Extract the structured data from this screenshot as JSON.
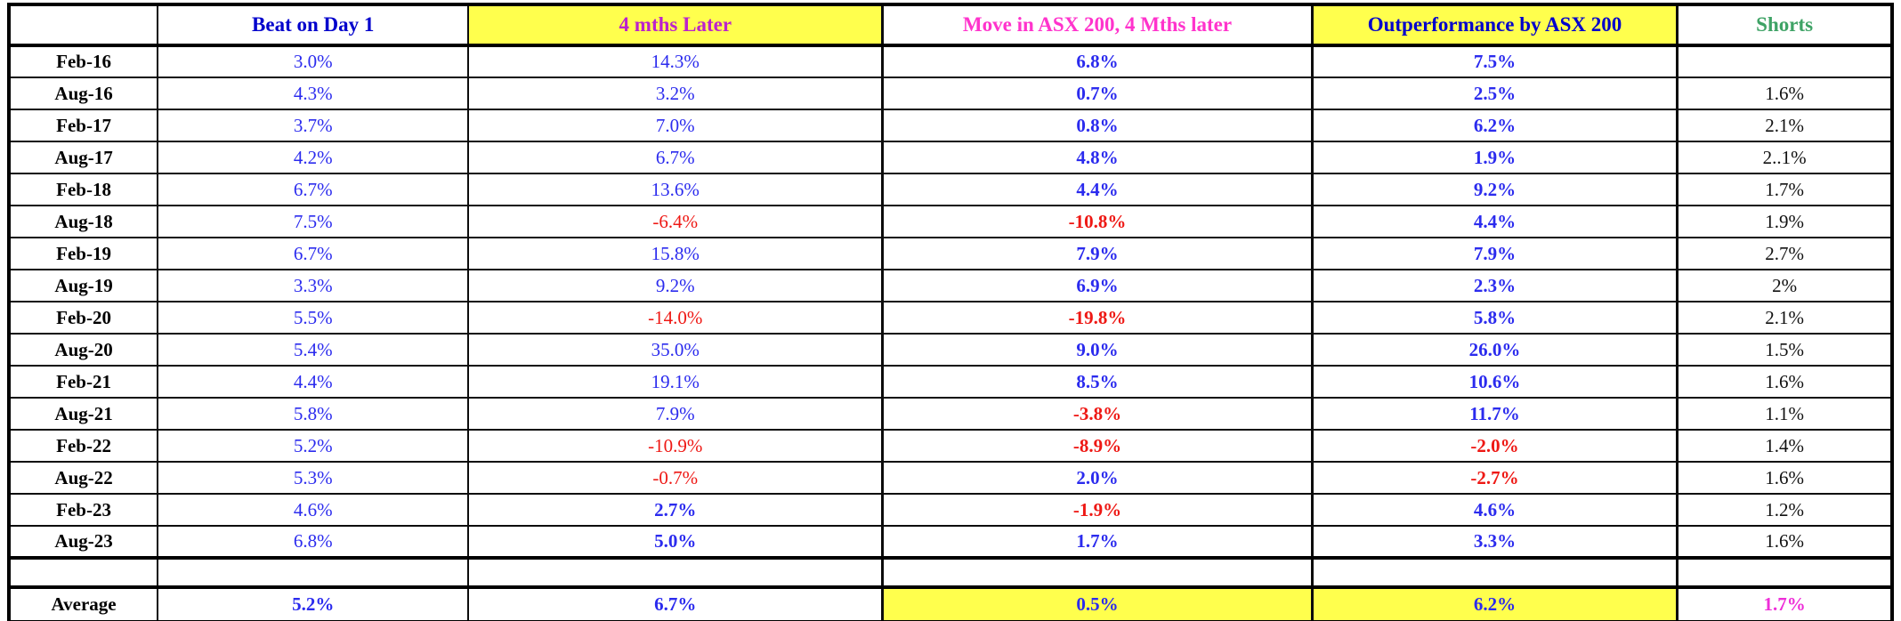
{
  "chart_data": {
    "type": "table",
    "columns": [
      "",
      "Beat on Day 1",
      "4 mths Later",
      "Move in ASX 200,  4 Mths later",
      "Outperformance by ASX 200",
      "Shorts"
    ],
    "column_keys": [
      "label",
      "beat",
      "four_mths",
      "asx_move",
      "outperformance",
      "shorts"
    ],
    "rows": [
      {
        "label": "Feb-16",
        "beat": "3.0%",
        "four_mths": "14.3%",
        "asx_move": "6.8%",
        "outperformance": "7.5%",
        "shorts": ""
      },
      {
        "label": "Aug-16",
        "beat": "4.3%",
        "four_mths": "3.2%",
        "asx_move": "0.7%",
        "outperformance": "2.5%",
        "shorts": "1.6%"
      },
      {
        "label": "Feb-17",
        "beat": "3.7%",
        "four_mths": "7.0%",
        "asx_move": "0.8%",
        "outperformance": "6.2%",
        "shorts": "2.1%"
      },
      {
        "label": "Aug-17",
        "beat": "4.2%",
        "four_mths": "6.7%",
        "asx_move": "4.8%",
        "outperformance": "1.9%",
        "shorts": "2..1%"
      },
      {
        "label": "Feb-18",
        "beat": "6.7%",
        "four_mths": "13.6%",
        "asx_move": "4.4%",
        "outperformance": "9.2%",
        "shorts": "1.7%"
      },
      {
        "label": "Aug-18",
        "beat": "7.5%",
        "four_mths": "-6.4%",
        "asx_move": "-10.8%",
        "outperformance": "4.4%",
        "shorts": "1.9%"
      },
      {
        "label": "Feb-19",
        "beat": "6.7%",
        "four_mths": "15.8%",
        "asx_move": "7.9%",
        "outperformance": "7.9%",
        "shorts": "2.7%"
      },
      {
        "label": "Aug-19",
        "beat": "3.3%",
        "four_mths": "9.2%",
        "asx_move": "6.9%",
        "outperformance": "2.3%",
        "shorts": "2%"
      },
      {
        "label": "Feb-20",
        "beat": "5.5%",
        "four_mths": "-14.0%",
        "asx_move": "-19.8%",
        "outperformance": "5.8%",
        "shorts": "2.1%"
      },
      {
        "label": "Aug-20",
        "beat": "5.4%",
        "four_mths": "35.0%",
        "asx_move": "9.0%",
        "outperformance": "26.0%",
        "shorts": "1.5%"
      },
      {
        "label": "Feb-21",
        "beat": "4.4%",
        "four_mths": "19.1%",
        "asx_move": "8.5%",
        "outperformance": "10.6%",
        "shorts": "1.6%"
      },
      {
        "label": "Aug-21",
        "beat": "5.8%",
        "four_mths": "7.9%",
        "asx_move": "-3.8%",
        "outperformance": "11.7%",
        "shorts": "1.1%"
      },
      {
        "label": "Feb-22",
        "beat": "5.2%",
        "four_mths": "-10.9%",
        "asx_move": "-8.9%",
        "outperformance": "-2.0%",
        "shorts": "1.4%"
      },
      {
        "label": "Aug-22",
        "beat": "5.3%",
        "four_mths": "-0.7%",
        "asx_move": "2.0%",
        "outperformance": "-2.7%",
        "shorts": "1.6%"
      },
      {
        "label": "Feb-23",
        "beat": "4.6%",
        "four_mths": "2.7%",
        "asx_move": "-1.9%",
        "outperformance": "4.6%",
        "shorts": "1.2%"
      },
      {
        "label": "Aug-23",
        "beat": "6.8%",
        "four_mths": "5.0%",
        "asx_move": "1.7%",
        "outperformance": "3.3%",
        "shorts": "1.6%"
      },
      {
        "label": "",
        "beat": "",
        "four_mths": "",
        "asx_move": "",
        "outperformance": "",
        "shorts": ""
      },
      {
        "label": "Average",
        "beat": "5.2%",
        "four_mths": "6.7%",
        "asx_move": "0.5%",
        "outperformance": "6.2%",
        "shorts": "1.7%"
      }
    ]
  },
  "styles": {
    "yellow_header_cols": [
      "four_mths",
      "outperformance"
    ],
    "average_yellow_cols": [
      "asx_move",
      "outperformance"
    ],
    "bold_value_cols": [
      "asx_move",
      "outperformance"
    ],
    "bold_four_mths_rows": [
      "Feb-23",
      "Aug-23"
    ]
  },
  "colors": {
    "value_blue": "#2B2BEE",
    "value_red": "#EE1814",
    "highlight_yellow": "#FFFF4D",
    "average_shorts_magenta": "#EE2ED8",
    "header_blue": "#0000CC",
    "header_magenta": "#BB22CC",
    "header_pink": "#FF33CC",
    "header_green": "#3FA366"
  }
}
